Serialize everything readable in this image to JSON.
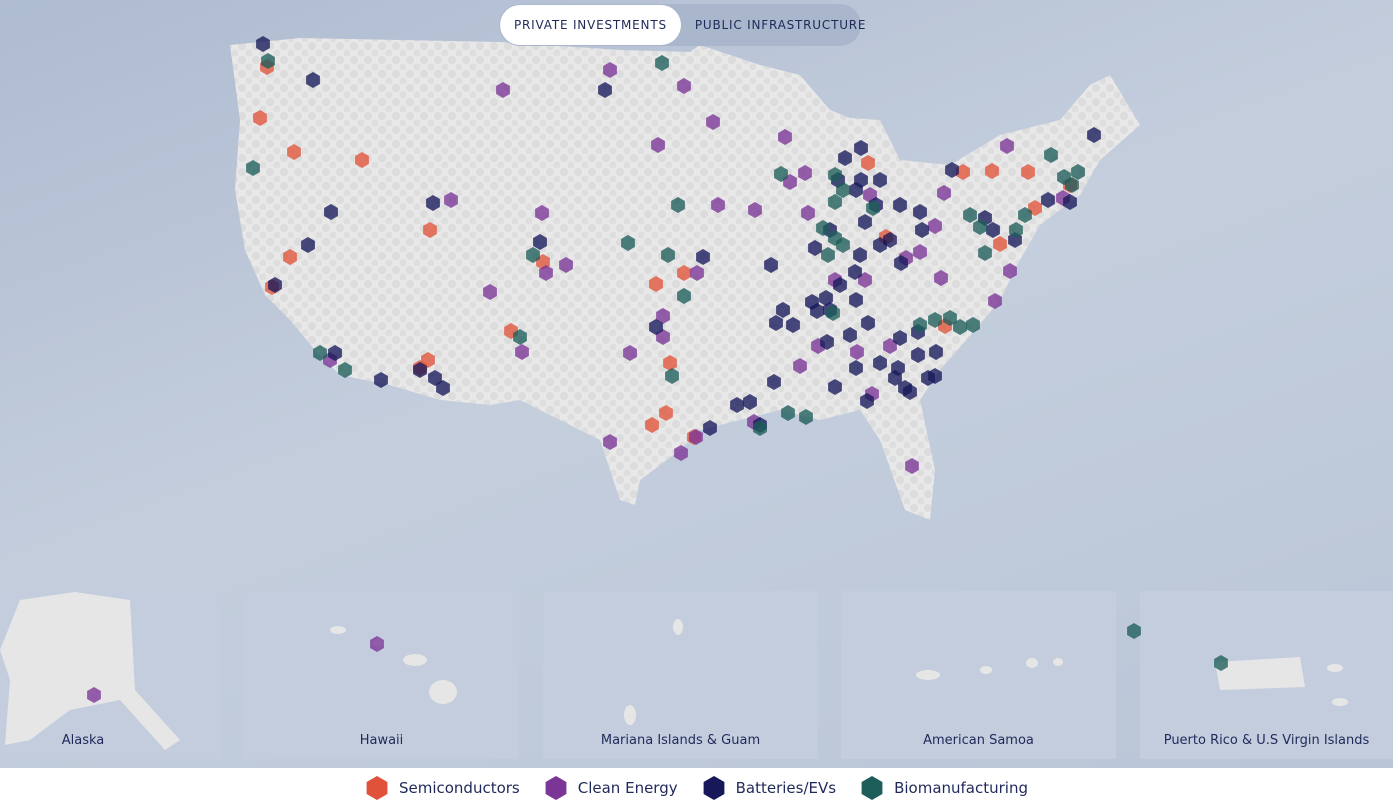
{
  "tabs": [
    {
      "label": "PRIVATE INVESTMENTS",
      "active": true
    },
    {
      "label": "PUBLIC INFRASTRUCTURE",
      "active": false
    }
  ],
  "insets": [
    "Alaska",
    "Hawaii",
    "Mariana Islands & Guam",
    "American Samoa",
    "Puerto Rico & U.S Virgin Islands"
  ],
  "legend": [
    {
      "label": "Semiconductors",
      "color": "#e0533a"
    },
    {
      "label": "Clean Energy",
      "color": "#7b3597"
    },
    {
      "label": "Batteries/EVs",
      "color": "#17185a"
    },
    {
      "label": "Biomanufacturing",
      "color": "#1d5e5a"
    }
  ]
}
